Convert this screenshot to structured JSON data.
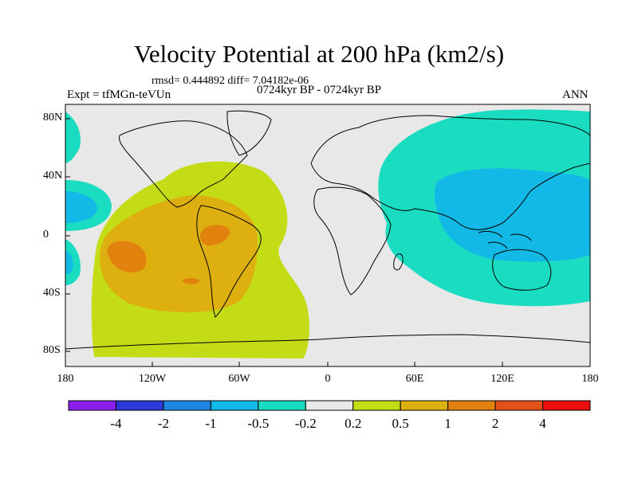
{
  "title": "Velocity Potential at 200 hPa (km2/s)",
  "stats": "rmsd= 0.444892 diff= 7.04182e-06",
  "experiment": "Expt = tfMGn-teVUn",
  "period": "0724kyr BP - 0724kyr BP",
  "season": "ANN",
  "y_ticks": [
    "80N",
    "40N",
    "0",
    "40S",
    "80S"
  ],
  "x_ticks": [
    "180",
    "120W",
    "60W",
    "0",
    "60E",
    "120E",
    "180"
  ],
  "colorbar": {
    "labels": [
      "-4",
      "-2",
      "-1",
      "-0.5",
      "-0.2",
      "0.2",
      "0.5",
      "1",
      "2",
      "4"
    ],
    "colors": [
      "#8a1ff0",
      "#2b3ad6",
      "#1e86e0",
      "#13b9e6",
      "#19dcc0",
      "#e8e8e8",
      "#c3dc15",
      "#ddb010",
      "#e2820e",
      "#e4501a",
      "#ea0e0e"
    ]
  },
  "palette": {
    "land_neutral": "#e8e8e8",
    "green": "#c3dc15",
    "orange": "#ddb010",
    "dark_orange": "#e2820e",
    "cyan": "#19dcc0",
    "light_blue": "#13b9e6"
  }
}
